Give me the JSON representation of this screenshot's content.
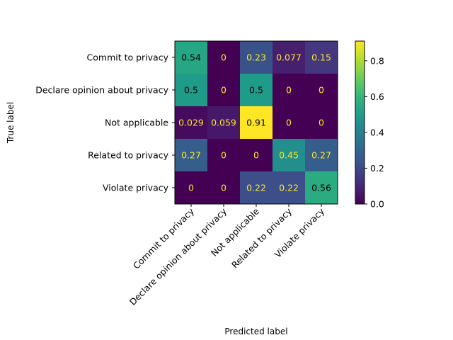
{
  "chart_data": {
    "type": "heatmap",
    "title": "",
    "xlabel": "Predicted label",
    "ylabel": "True label",
    "x_categories": [
      "Commit to privacy",
      "Declare opinion about privacy",
      "Not applicable",
      "Related to privacy",
      "Violate privacy"
    ],
    "y_categories": [
      "Commit to privacy",
      "Declare opinion about privacy",
      "Not applicable",
      "Related to privacy",
      "Violate privacy"
    ],
    "values": [
      [
        0.54,
        0,
        0.23,
        0.077,
        0.15
      ],
      [
        0.5,
        0,
        0.5,
        0,
        0
      ],
      [
        0.029,
        0.059,
        0.91,
        0,
        0
      ],
      [
        0.27,
        0,
        0,
        0.45,
        0.27
      ],
      [
        0,
        0,
        0.22,
        0.22,
        0.56
      ]
    ],
    "cell_labels": [
      [
        "0.54",
        "0",
        "0.23",
        "0.077",
        "0.15"
      ],
      [
        "0.5",
        "0",
        "0.5",
        "0",
        "0"
      ],
      [
        "0.029",
        "0.059",
        "0.91",
        "0",
        "0"
      ],
      [
        "0.27",
        "0",
        "0",
        "0.45",
        "0.27"
      ],
      [
        "0",
        "0",
        "0.22",
        "0.22",
        "0.56"
      ]
    ],
    "colormap": "viridis",
    "colorbar": {
      "range": [
        0,
        0.91
      ],
      "ticks": [
        0.0,
        0.2,
        0.4,
        0.6,
        0.8
      ],
      "tick_labels": [
        "0.0",
        "0.2",
        "0.4",
        "0.6",
        "0.8"
      ]
    },
    "text_colors": {
      "on_dark": "#fde725",
      "on_light": "#000000"
    },
    "grid": false,
    "legend": "colorbar-right"
  }
}
